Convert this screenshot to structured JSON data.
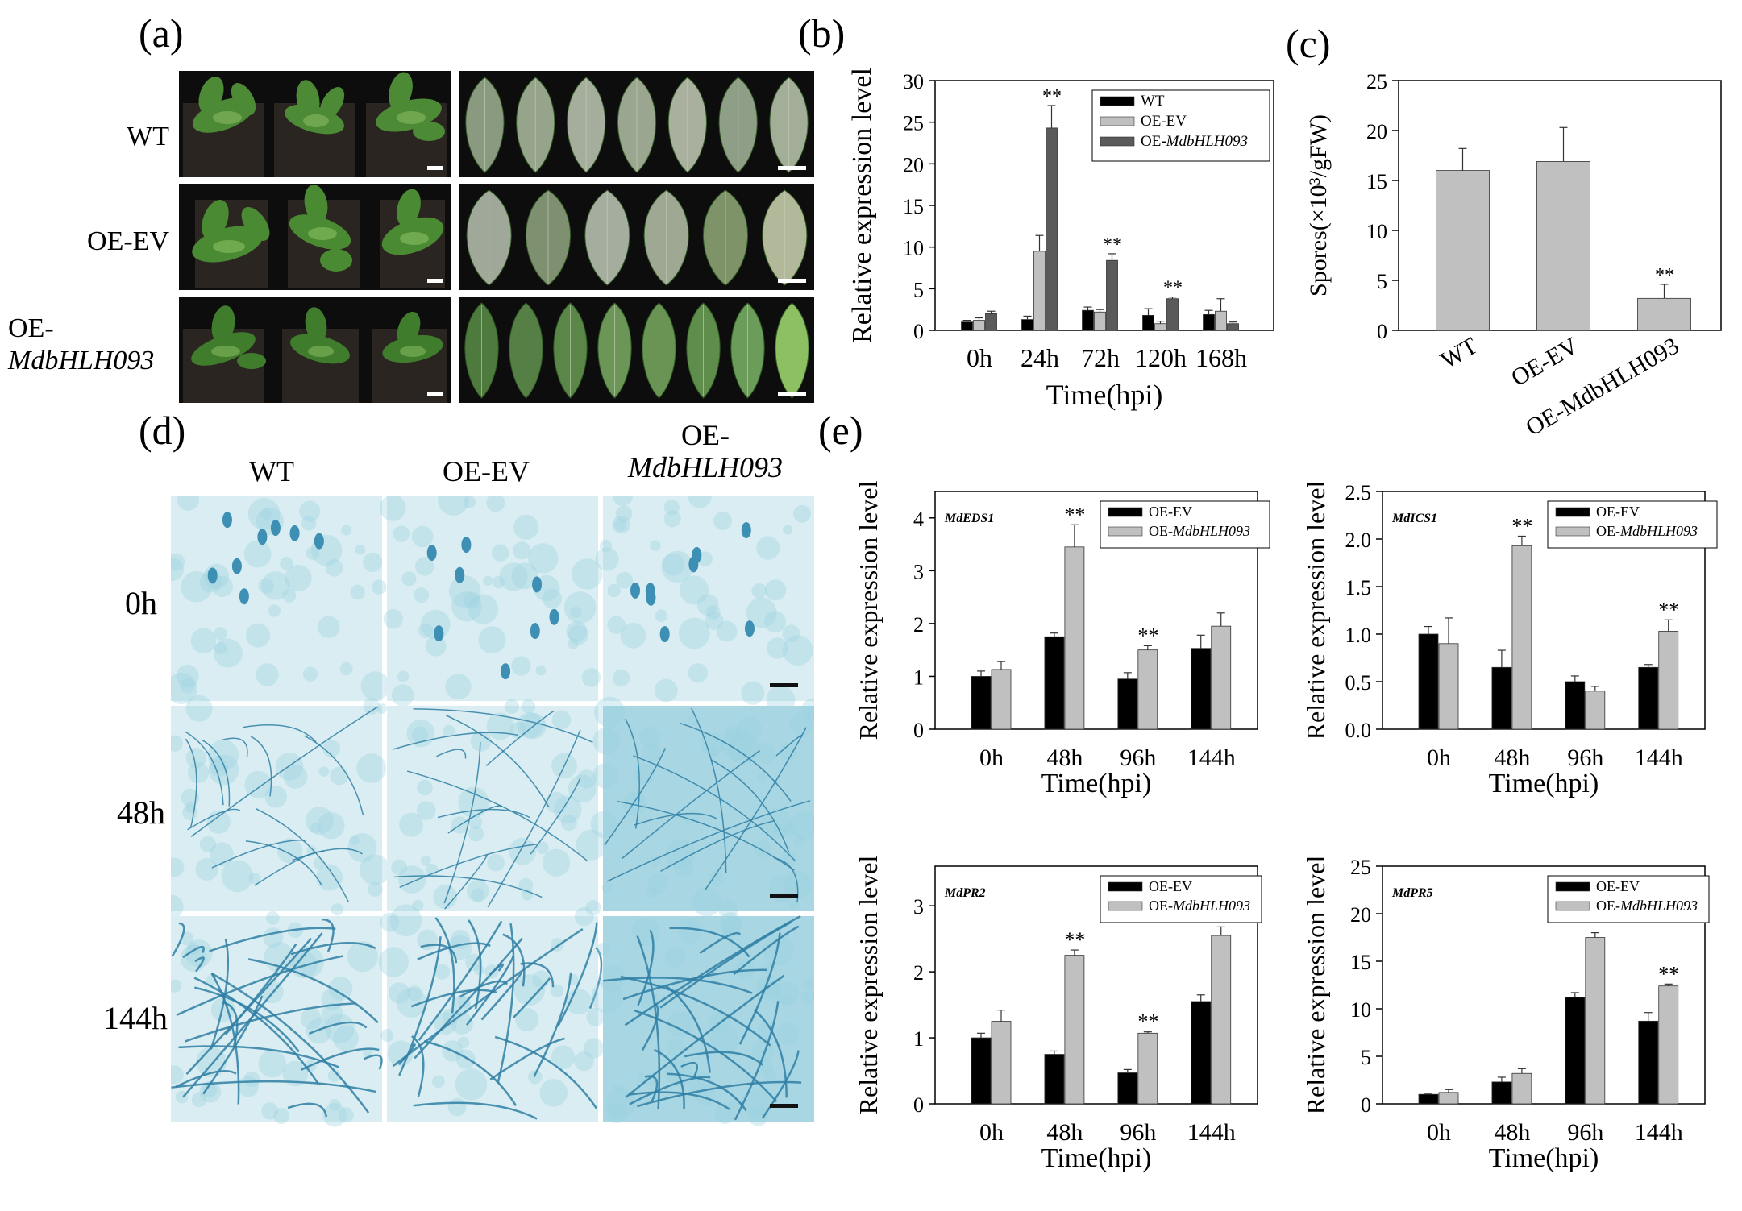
{
  "panels": {
    "a": {
      "letter": "(a)",
      "rows": [
        {
          "label": "WT"
        },
        {
          "label": "OE-EV"
        },
        {
          "label_line1": "OE-",
          "label_line2": "MdbHLH093"
        }
      ]
    },
    "b": {
      "letter": "(b)"
    },
    "c": {
      "letter": "(c)"
    },
    "d": {
      "letter": "(d)",
      "columns": [
        {
          "label": "WT"
        },
        {
          "label": "OE-EV"
        },
        {
          "label_line1": "OE-",
          "label_line2": "MdbHLH093"
        }
      ],
      "rows": [
        {
          "label": "0h"
        },
        {
          "label": "48h"
        },
        {
          "label": "144h"
        }
      ]
    },
    "e": {
      "letter": "(e)"
    }
  },
  "colors": {
    "wt": "#000000",
    "oe_ev": "#c0c0c0",
    "oe_gene": "#5a5a5a",
    "spores_bar": "#c0c0c0",
    "stain": "#3aa6c4",
    "plant_bg": "#0d0d0d",
    "leaf": "#3e7a2e"
  },
  "chart_data": [
    {
      "id": "b",
      "type": "bar",
      "title": "",
      "ylabel": "Relative expression level",
      "xlabel": "Time(hpi)",
      "ylim": [
        0,
        30
      ],
      "yticks": [
        "0",
        "5",
        "10",
        "15",
        "20",
        "25",
        "30"
      ],
      "categories": [
        "0h",
        "24h",
        "72h",
        "120h",
        "168h"
      ],
      "legend_position": "top-right",
      "series": [
        {
          "name": "WT",
          "values": [
            1.0,
            1.3,
            2.4,
            1.8,
            1.9
          ],
          "errors": [
            0.2,
            0.4,
            0.4,
            0.8,
            0.5
          ]
        },
        {
          "name": "OE-EV",
          "values": [
            1.2,
            9.5,
            2.2,
            0.8,
            2.3
          ],
          "errors": [
            0.3,
            1.9,
            0.3,
            0.3,
            1.5
          ]
        },
        {
          "name": "OE-MdbHLH093",
          "name_prefix": "OE-",
          "name_italic": "MdbHLH093",
          "values": [
            2.0,
            24.3,
            8.4,
            3.8,
            0.8
          ],
          "errors": [
            0.3,
            2.7,
            0.8,
            0.2,
            0.2
          ]
        }
      ],
      "significance": [
        {
          "category": "24h",
          "series": 2,
          "text": "**"
        },
        {
          "category": "72h",
          "series": 2,
          "text": "**"
        },
        {
          "category": "120h",
          "series": 2,
          "text": "**"
        }
      ]
    },
    {
      "id": "c",
      "type": "bar",
      "title": "",
      "ylabel": "Spores(×10³/gFW)",
      "xlabel": "",
      "ylim": [
        0,
        25
      ],
      "yticks": [
        "0",
        "5",
        "10",
        "15",
        "20",
        "25"
      ],
      "categories": [
        "WT",
        "OE-EV",
        "OE-MdbHLH093"
      ],
      "series": [
        {
          "name": "",
          "values": [
            16.0,
            16.9,
            3.2
          ],
          "errors": [
            2.2,
            3.4,
            1.4
          ]
        }
      ],
      "significance": [
        {
          "category": "OE-MdbHLH093",
          "series": 0,
          "text": "**"
        }
      ]
    },
    {
      "id": "e1",
      "type": "bar",
      "title": "MdEDS1",
      "ylabel": "Relative expression level",
      "xlabel": "Time(hpi)",
      "ylim": [
        0,
        4.5
      ],
      "yticks": [
        "0",
        "1",
        "2",
        "3",
        "4"
      ],
      "categories": [
        "0h",
        "48h",
        "96h",
        "144h"
      ],
      "legend_position": "top-right",
      "series": [
        {
          "name": "OE-EV",
          "values": [
            1.0,
            1.75,
            0.95,
            1.53
          ],
          "errors": [
            0.1,
            0.07,
            0.12,
            0.25
          ]
        },
        {
          "name": "OE-MdbHLH093",
          "name_prefix": "OE-",
          "name_italic": "MdbHLH093",
          "values": [
            1.13,
            3.45,
            1.5,
            1.95
          ],
          "errors": [
            0.15,
            0.42,
            0.08,
            0.25
          ]
        }
      ],
      "significance": [
        {
          "category": "48h",
          "series": 1,
          "text": "**"
        },
        {
          "category": "96h",
          "series": 1,
          "text": "**"
        }
      ]
    },
    {
      "id": "e2",
      "type": "bar",
      "title": "MdICS1",
      "ylabel": "Relative expression level",
      "xlabel": "Time(hpi)",
      "ylim": [
        0,
        2.5
      ],
      "yticks": [
        "0.0",
        "0.5",
        "1.0",
        "1.5",
        "2.0",
        "2.5"
      ],
      "categories": [
        "0h",
        "48h",
        "96h",
        "144h"
      ],
      "legend_position": "top-right",
      "series": [
        {
          "name": "OE-EV",
          "values": [
            1.0,
            0.65,
            0.5,
            0.65
          ],
          "errors": [
            0.08,
            0.18,
            0.06,
            0.03
          ]
        },
        {
          "name": "OE-MdbHLH093",
          "name_prefix": "OE-",
          "name_italic": "MdbHLH093",
          "values": [
            0.9,
            1.93,
            0.4,
            1.03
          ],
          "errors": [
            0.27,
            0.1,
            0.05,
            0.12
          ]
        }
      ],
      "significance": [
        {
          "category": "48h",
          "series": 1,
          "text": "**"
        },
        {
          "category": "144h",
          "series": 1,
          "text": "**"
        }
      ]
    },
    {
      "id": "e3",
      "type": "bar",
      "title": "MdPR2",
      "ylabel": "Relative expression level",
      "xlabel": "Time(hpi)",
      "ylim": [
        0,
        3.6
      ],
      "yticks": [
        "0",
        "1",
        "2",
        "3"
      ],
      "categories": [
        "0h",
        "48h",
        "96h",
        "144h"
      ],
      "legend_position": "top-right",
      "series": [
        {
          "name": "OE-EV",
          "values": [
            1.0,
            0.75,
            0.47,
            1.55
          ],
          "errors": [
            0.07,
            0.05,
            0.05,
            0.1
          ]
        },
        {
          "name": "OE-MdbHLH093",
          "name_prefix": "OE-",
          "name_italic": "MdbHLH093",
          "values": [
            1.25,
            2.25,
            1.07,
            2.55
          ],
          "errors": [
            0.17,
            0.08,
            0.02,
            0.13
          ]
        }
      ],
      "significance": [
        {
          "category": "48h",
          "series": 1,
          "text": "**"
        },
        {
          "category": "96h",
          "series": 1,
          "text": "**"
        },
        {
          "category": "144h",
          "series": 1,
          "text": "**"
        }
      ]
    },
    {
      "id": "e4",
      "type": "bar",
      "title": "MdPR5",
      "ylabel": "Relative expression level",
      "xlabel": "Time(hpi)",
      "ylim": [
        0,
        25
      ],
      "yticks": [
        "0",
        "5",
        "10",
        "15",
        "20",
        "25"
      ],
      "categories": [
        "0h",
        "48h",
        "96h",
        "144h"
      ],
      "legend_position": "top-right",
      "series": [
        {
          "name": "OE-EV",
          "values": [
            1.0,
            2.3,
            11.2,
            8.7
          ],
          "errors": [
            0.1,
            0.5,
            0.5,
            0.9
          ]
        },
        {
          "name": "OE-MdbHLH093",
          "name_prefix": "OE-",
          "name_italic": "MdbHLH093",
          "values": [
            1.2,
            3.2,
            17.5,
            12.4
          ],
          "errors": [
            0.3,
            0.5,
            0.5,
            0.2
          ]
        }
      ],
      "significance": [
        {
          "category": "96h",
          "series": 1,
          "text": "**"
        },
        {
          "category": "144h",
          "series": 1,
          "text": "**"
        }
      ]
    }
  ]
}
